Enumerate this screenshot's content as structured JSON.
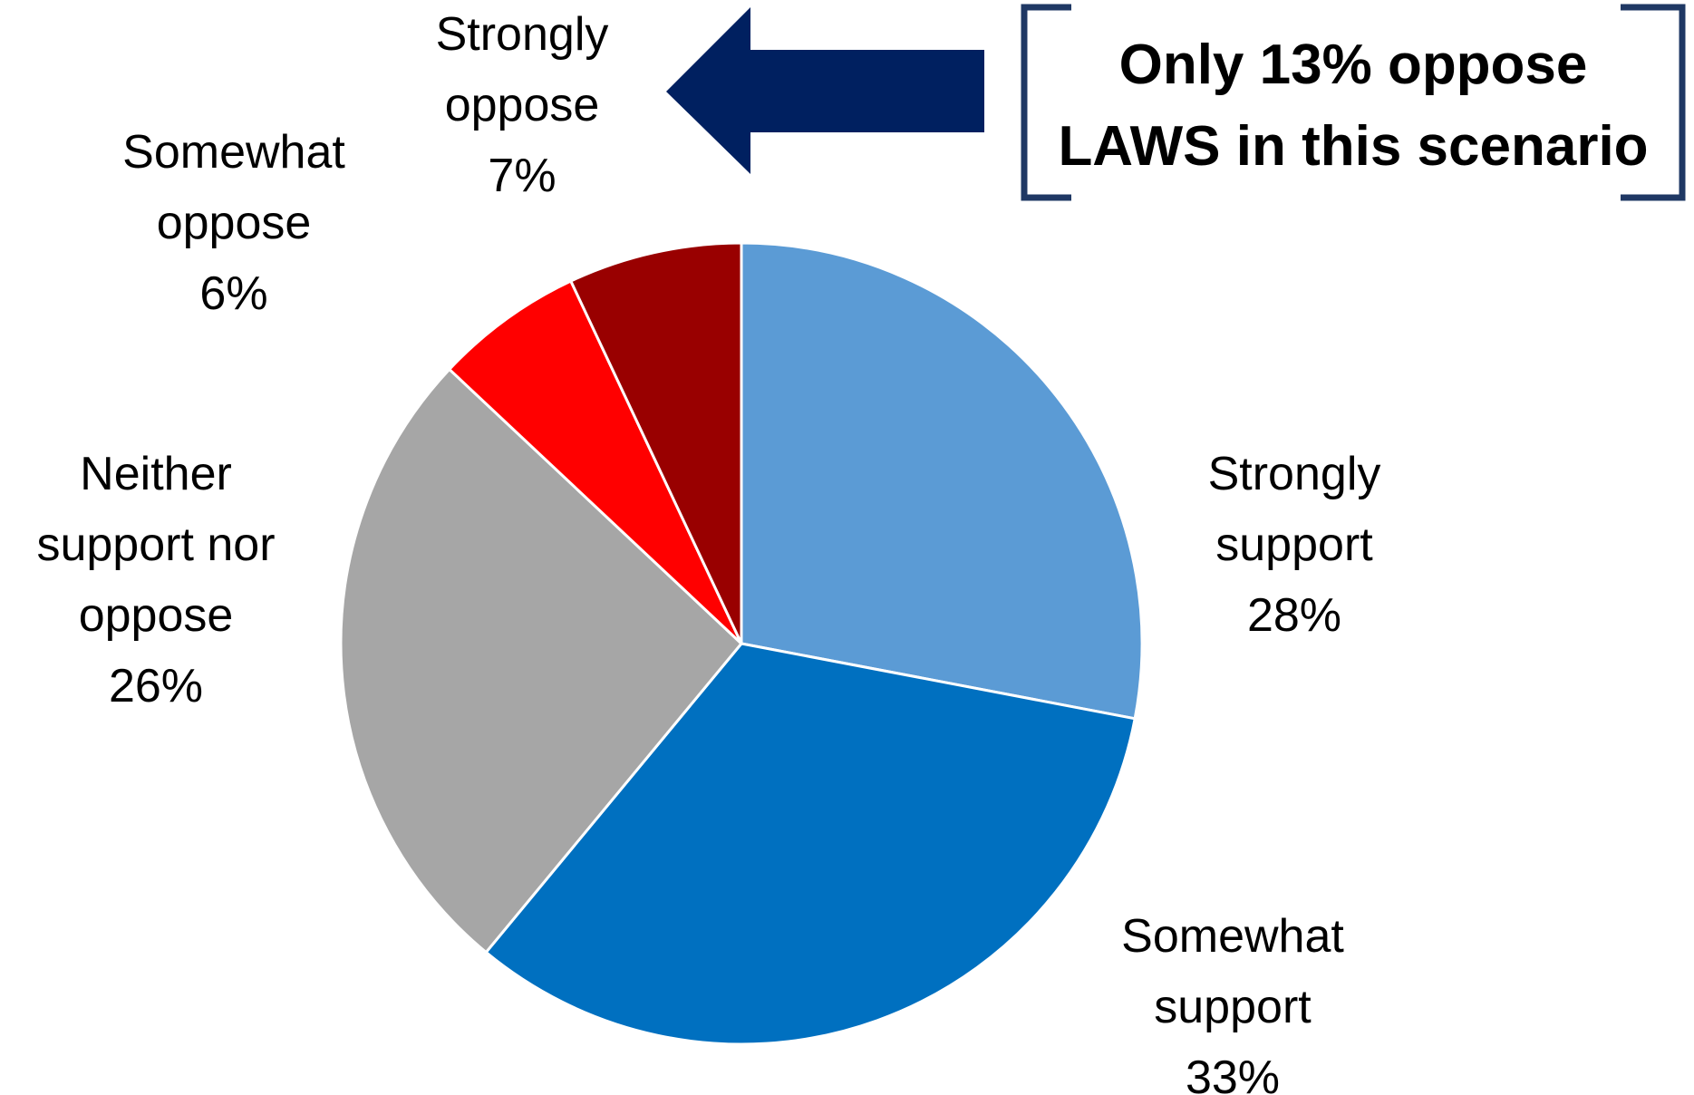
{
  "chart_data": {
    "type": "pie",
    "start_angle_deg": 0,
    "direction": "clockwise",
    "slices": [
      {
        "label_lines": [
          "Strongly",
          "support"
        ],
        "value": 28,
        "value_label": "28%",
        "color": "#5B9BD5"
      },
      {
        "label_lines": [
          "Somewhat",
          "support"
        ],
        "value": 33,
        "value_label": "33%",
        "color": "#0070C0"
      },
      {
        "label_lines": [
          "Neither",
          "support nor",
          "oppose"
        ],
        "value": 26,
        "value_label": "26%",
        "color": "#A6A6A6"
      },
      {
        "label_lines": [
          "Somewhat",
          "oppose"
        ],
        "value": 6,
        "value_label": "6%",
        "color": "#FF0000"
      },
      {
        "label_lines": [
          "Strongly",
          "oppose"
        ],
        "value": 7,
        "value_label": "7%",
        "color": "#990000"
      }
    ],
    "slice_border_color": "#FFFFFF"
  },
  "callout": {
    "lines": [
      "Only 13% oppose",
      "LAWS in this scenario"
    ],
    "arrow_color": "#002060",
    "bracket_color": "#1F3864"
  }
}
